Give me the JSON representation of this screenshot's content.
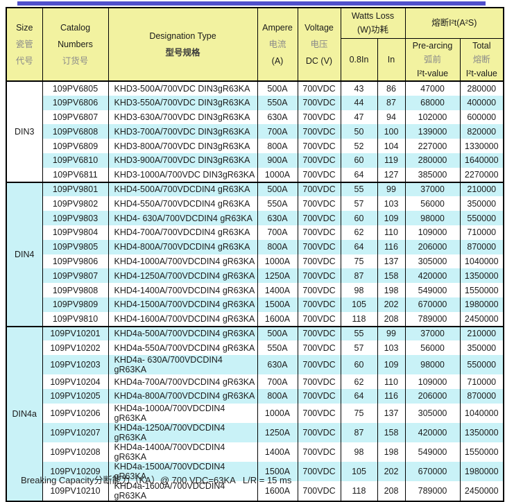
{
  "colors": {
    "header_bg": "#F2F2A0",
    "shaded_row_bg": "#C9F2F7",
    "top_bar": "#5050CB",
    "border": "#000000"
  },
  "header": {
    "size": {
      "line1": "Size",
      "line2": "瓷管",
      "line3": "代号"
    },
    "catalog": {
      "line1": "Catalog",
      "line2": "Numbers",
      "line3": "订货号"
    },
    "designation": {
      "line1": "Designation Type",
      "line2": "型号规格"
    },
    "ampere": {
      "line1": "Ampere",
      "line2": "电流",
      "line3": "(A)"
    },
    "voltage": {
      "line1": "Voltage",
      "line2": "电压",
      "line3": "DC (V)"
    },
    "watts_group": {
      "line1": "Watts Loss",
      "line2": "(W)功耗"
    },
    "col_08in": "0.8In",
    "col_in": "In",
    "i2t_group": "熔断I²t(A²S)",
    "prearcing": {
      "line1": "Pre-arcing",
      "line2": "弧前",
      "line3": "I²t-value"
    },
    "total": {
      "line1": "Total",
      "line2": "熔断",
      "line3": "I²t-value"
    }
  },
  "sections": [
    {
      "size": "DIN3",
      "rows": [
        {
          "catalog": "109PV6805",
          "designation": "KHD3-500A/700VDC DIN3gR63KA",
          "ampere": "500A",
          "voltage": "700VDC",
          "w08": "43",
          "wIn": "86",
          "prearc": "47000",
          "total": "280000",
          "shaded": false
        },
        {
          "catalog": "109PV6806",
          "designation": "KHD3-550A/700VDC DIN3gR63KA",
          "ampere": "550A",
          "voltage": "700VDC",
          "w08": "44",
          "wIn": "87",
          "prearc": "68000",
          "total": "400000",
          "shaded": true
        },
        {
          "catalog": "109PV6807",
          "designation": "KHD3-630A/700VDC DIN3gR63KA",
          "ampere": "630A",
          "voltage": "700VDC",
          "w08": "47",
          "wIn": "94",
          "prearc": "102000",
          "total": "600000",
          "shaded": false
        },
        {
          "catalog": "109PV6808",
          "designation": "KHD3-700A/700VDC DIN3gR63KA",
          "ampere": "700A",
          "voltage": "700VDC",
          "w08": "50",
          "wIn": "100",
          "prearc": "139000",
          "total": "820000",
          "shaded": true
        },
        {
          "catalog": "109PV6809",
          "designation": "KHD3-800A/700VDC DIN3gR63KA",
          "ampere": "800A",
          "voltage": "700VDC",
          "w08": "52",
          "wIn": "104",
          "prearc": "227000",
          "total": "1330000",
          "shaded": false
        },
        {
          "catalog": "109PV6810",
          "designation": "KHD3-900A/700VDC DIN3gR63KA",
          "ampere": "900A",
          "voltage": "700VDC",
          "w08": "60",
          "wIn": "119",
          "prearc": "280000",
          "total": "1640000",
          "shaded": true
        },
        {
          "catalog": "109PV6811",
          "designation": "KHD3-1000A/700VDC DIN3gR63KA",
          "ampere": "1000A",
          "voltage": "700VDC",
          "w08": "64",
          "wIn": "127",
          "prearc": "385000",
          "total": "2270000",
          "shaded": false
        }
      ]
    },
    {
      "size": "DIN4",
      "rows": [
        {
          "catalog": "109PV9801",
          "designation": "KHD4-500A/700VDCDIN4 gR63KA",
          "ampere": "500A",
          "voltage": "700VDC",
          "w08": "55",
          "wIn": "99",
          "prearc": "37000",
          "total": "210000",
          "shaded": true
        },
        {
          "catalog": "109PV9802",
          "designation": "KHD4-550A/700VDCDIN4 gR63KA",
          "ampere": "550A",
          "voltage": "700VDC",
          "w08": "57",
          "wIn": "103",
          "prearc": "56000",
          "total": "350000",
          "shaded": false
        },
        {
          "catalog": "109PV9803",
          "designation": "KHD4- 630A/700VDCDIN4 gR63KA",
          "ampere": "630A",
          "voltage": "700VDC",
          "w08": "60",
          "wIn": "109",
          "prearc": "98000",
          "total": "550000",
          "shaded": true
        },
        {
          "catalog": "109PV9804",
          "designation": "KHD4-700A/700VDCDIN4 gR63KA",
          "ampere": "700A",
          "voltage": "700VDC",
          "w08": "62",
          "wIn": "110",
          "prearc": "109000",
          "total": "710000",
          "shaded": false
        },
        {
          "catalog": "109PV9805",
          "designation": "KHD4-800A/700VDCDIN4 gR63KA",
          "ampere": "800A",
          "voltage": "700VDC",
          "w08": "64",
          "wIn": "116",
          "prearc": "206000",
          "total": "870000",
          "shaded": true
        },
        {
          "catalog": "109PV9806",
          "designation": "KHD4-1000A/700VDCDIN4 gR63KA",
          "ampere": "1000A",
          "voltage": "700VDC",
          "w08": "75",
          "wIn": "137",
          "prearc": "305000",
          "total": "1040000",
          "shaded": false
        },
        {
          "catalog": "109PV9807",
          "designation": "KHD4-1250A/700VDCDIN4 gR63KA",
          "ampere": "1250A",
          "voltage": "700VDC",
          "w08": "87",
          "wIn": "158",
          "prearc": "420000",
          "total": "1350000",
          "shaded": true
        },
        {
          "catalog": "109PV9808",
          "designation": "KHD4-1400A/700VDCDIN4 gR63KA",
          "ampere": "1400A",
          "voltage": "700VDC",
          "w08": "98",
          "wIn": "198",
          "prearc": "549000",
          "total": "1550000",
          "shaded": false
        },
        {
          "catalog": "109PV9809",
          "designation": "KHD4-1500A/700VDCDIN4 gR63KA",
          "ampere": "1500A",
          "voltage": "700VDC",
          "w08": "105",
          "wIn": "202",
          "prearc": "670000",
          "total": "1980000",
          "shaded": true
        },
        {
          "catalog": "109PV9810",
          "designation": "KHD4-1600A/700VDCDIN4 gR63KA",
          "ampere": "1600A",
          "voltage": "700VDC",
          "w08": "118",
          "wIn": "208",
          "prearc": "789000",
          "total": "2450000",
          "shaded": false
        }
      ]
    },
    {
      "size": "DIN4a",
      "rows": [
        {
          "catalog": "109PV10201",
          "designation": "KHD4a-500A/700VDCDIN4 gR63KA",
          "ampere": "500A",
          "voltage": "700VDC",
          "w08": "55",
          "wIn": "99",
          "prearc": "37000",
          "total": "210000",
          "shaded": true
        },
        {
          "catalog": "109PV10202",
          "designation": "KHD4a-550A/700VDCDIN4 gR63KA",
          "ampere": "550A",
          "voltage": "700VDC",
          "w08": "57",
          "wIn": "103",
          "prearc": "56000",
          "total": "350000",
          "shaded": false
        },
        {
          "catalog": "109PV10203",
          "designation": "KHD4a- 630A/700VDCDIN4 gR63KA",
          "ampere": "630A",
          "voltage": "700VDC",
          "w08": "60",
          "wIn": "109",
          "prearc": "98000",
          "total": "550000",
          "shaded": true
        },
        {
          "catalog": "109PV10204",
          "designation": "KHD4a-700A/700VDCDIN4 gR63KA",
          "ampere": "700A",
          "voltage": "700VDC",
          "w08": "62",
          "wIn": "110",
          "prearc": "109000",
          "total": "710000",
          "shaded": false
        },
        {
          "catalog": "109PV10205",
          "designation": "KHD4a-800A/700VDCDIN4 gR63KA",
          "ampere": "800A",
          "voltage": "700VDC",
          "w08": "64",
          "wIn": "116",
          "prearc": "206000",
          "total": "870000",
          "shaded": true
        },
        {
          "catalog": "109PV10206",
          "designation": "KHD4a-1000A/700VDCDIN4 gR63KA",
          "ampere": "1000A",
          "voltage": "700VDC",
          "w08": "75",
          "wIn": "137",
          "prearc": "305000",
          "total": "1040000",
          "shaded": false
        },
        {
          "catalog": "109PV10207",
          "designation": "KHD4a-1250A/700VDCDIN4 gR63KA",
          "ampere": "1250A",
          "voltage": "700VDC",
          "w08": "87",
          "wIn": "158",
          "prearc": "420000",
          "total": "1350000",
          "shaded": true
        },
        {
          "catalog": "109PV10208",
          "designation": "KHD4a-1400A/700VDCDIN4 gR63KA",
          "ampere": "1400A",
          "voltage": "700VDC",
          "w08": "98",
          "wIn": "198",
          "prearc": "549000",
          "total": "1550000",
          "shaded": false
        },
        {
          "catalog": "109PV10209",
          "designation": "KHD4a-1500A/700VDCDIN4 gR63KA",
          "ampere": "1500A",
          "voltage": "700VDC",
          "w08": "105",
          "wIn": "202",
          "prearc": "670000",
          "total": "1980000",
          "shaded": true
        },
        {
          "catalog": "109PV10210",
          "designation": "KHD4a-1600A/700VDCDIN4 gR63KA",
          "ampere": "1600A",
          "voltage": "700VDC",
          "w08": "118",
          "wIn": "208",
          "prearc": "789000",
          "total": "2450000",
          "shaded": false
        }
      ]
    }
  ],
  "footer": {
    "text": "Breaking Capacity分断能力（KA）@ 700 VDC=63KA   L/R = 15 ms"
  }
}
